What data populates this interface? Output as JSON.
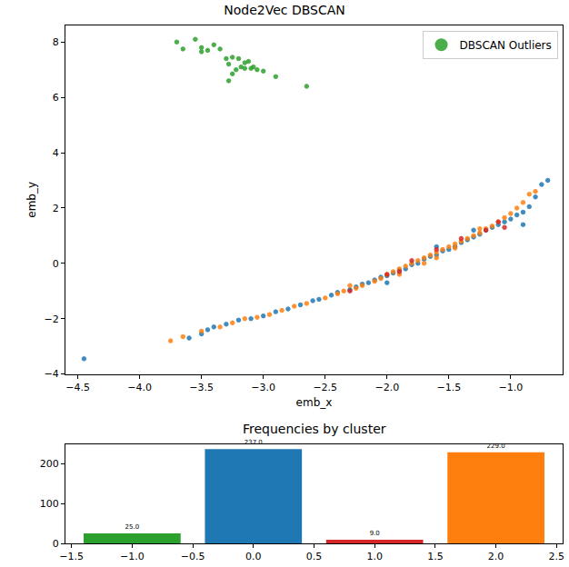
{
  "chart_data": [
    {
      "type": "scatter",
      "title": "Node2Vec DBSCAN",
      "x_label": "emb_x",
      "y_label": "emb_y",
      "legend": "upper right",
      "marker": "o",
      "xlim": [
        -4.6,
        -0.58
      ],
      "xticks": [
        {
          "value": -4.5,
          "label": "−4.5"
        },
        {
          "value": -4.0,
          "label": "−4.0"
        },
        {
          "value": -3.5,
          "label": "−3.5"
        },
        {
          "value": -3.0,
          "label": "−3.0"
        },
        {
          "value": -2.5,
          "label": "−2.5"
        },
        {
          "value": -2.0,
          "label": "−2.0"
        },
        {
          "value": -1.5,
          "label": "−1.5"
        },
        {
          "value": -1.0,
          "label": "−1.0"
        }
      ],
      "ylim": [
        -4,
        8.6
      ],
      "yticks": [
        {
          "value": -4,
          "label": "−4"
        },
        {
          "value": -2,
          "label": "−2"
        },
        0,
        2,
        4,
        6,
        8
      ],
      "series": [
        {
          "color": "#1f77b4",
          "x": [
            -4.45,
            -3.6,
            -3.5,
            -3.45,
            -3.4,
            -3.3,
            -3.2,
            -3.1,
            -3.0,
            -2.9,
            -2.8,
            -2.7,
            -2.6,
            -2.55,
            -2.45,
            -2.4,
            -2.3,
            -2.25,
            -2.2,
            -2.15,
            -2.1,
            -2.05,
            -2.0,
            -1.95,
            -1.9,
            -1.85,
            -1.8,
            -1.75,
            -1.7,
            -1.65,
            -1.6,
            -1.55,
            -1.5,
            -1.45,
            -1.4,
            -1.35,
            -1.3,
            -1.25,
            -1.2,
            -1.15,
            -1.1,
            -1.05,
            -1.0,
            -0.95,
            -0.9,
            -0.85,
            -0.8,
            -0.75,
            -0.7,
            -0.9,
            -1.6,
            -2.0,
            -1.3
          ],
          "values": [
            -3.45,
            -2.7,
            -2.55,
            -2.4,
            -2.3,
            -2.2,
            -2.05,
            -2.0,
            -1.9,
            -1.75,
            -1.65,
            -1.5,
            -1.35,
            -1.3,
            -1.15,
            -1.05,
            -0.95,
            -0.85,
            -0.75,
            -0.7,
            -0.6,
            -0.5,
            -0.45,
            -0.35,
            -0.25,
            -0.2,
            -0.05,
            0.0,
            0.15,
            0.25,
            0.3,
            0.45,
            0.5,
            0.6,
            0.75,
            0.85,
            0.95,
            1.05,
            1.2,
            1.3,
            1.4,
            1.5,
            1.6,
            1.75,
            1.85,
            2.05,
            2.4,
            2.85,
            3.0,
            1.4,
            0.6,
            -0.7,
            1.2
          ]
        },
        {
          "color": "#ff7f0e",
          "x": [
            -3.75,
            -3.65,
            -3.5,
            -3.35,
            -3.25,
            -3.15,
            -3.05,
            -2.95,
            -2.85,
            -2.75,
            -2.65,
            -2.5,
            -2.4,
            -2.35,
            -2.25,
            -2.2,
            -2.1,
            -2.05,
            -2.0,
            -1.95,
            -1.9,
            -1.85,
            -1.8,
            -1.75,
            -1.7,
            -1.65,
            -1.6,
            -1.55,
            -1.5,
            -1.45,
            -1.4,
            -1.35,
            -1.3,
            -1.25,
            -1.2,
            -1.15,
            -1.1,
            -1.05,
            -1.0,
            -0.95,
            -0.9,
            -0.85,
            -0.8,
            -1.9,
            -1.7,
            -1.45,
            -2.3,
            -1.25,
            -1.6
          ],
          "values": [
            -2.8,
            -2.65,
            -2.45,
            -2.3,
            -2.15,
            -2.0,
            -1.95,
            -1.85,
            -1.7,
            -1.55,
            -1.45,
            -1.25,
            -1.1,
            -1.0,
            -0.9,
            -0.8,
            -0.65,
            -0.55,
            -0.4,
            -0.3,
            -0.2,
            -0.1,
            0.0,
            0.1,
            0.2,
            0.3,
            0.4,
            0.5,
            0.6,
            0.7,
            0.8,
            0.9,
            1.0,
            1.1,
            1.25,
            1.35,
            1.5,
            1.65,
            1.8,
            2.0,
            2.2,
            2.5,
            2.6,
            -0.4,
            0.0,
            0.55,
            -0.8,
            1.25,
            0.2
          ]
        },
        {
          "color": "#d62728",
          "x": [
            -2.0,
            -1.8,
            -1.1,
            -1.05,
            -1.9,
            -2.3,
            -1.6,
            -1.4,
            -1.2
          ],
          "values": [
            -0.4,
            0.1,
            1.5,
            1.3,
            -0.3,
            -1.0,
            0.5,
            0.9,
            1.2
          ]
        },
        {
          "name": "DBSCAN Outliers",
          "color": "#2ca02c",
          "x": [
            -3.7,
            -3.65,
            -3.55,
            -3.5,
            -3.45,
            -3.4,
            -3.35,
            -3.3,
            -3.28,
            -3.25,
            -3.22,
            -3.2,
            -3.18,
            -3.15,
            -3.12,
            -3.1,
            -3.08,
            -3.05,
            -3.0,
            -3.28,
            -3.25,
            -2.9,
            -2.65,
            -3.5,
            -3.15
          ],
          "values": [
            8.0,
            7.75,
            8.1,
            7.8,
            7.7,
            7.9,
            7.75,
            7.4,
            7.2,
            7.45,
            7.0,
            7.4,
            7.1,
            7.25,
            7.3,
            7.05,
            7.1,
            7.0,
            6.95,
            6.6,
            6.85,
            6.75,
            6.4,
            7.65,
            7.05
          ]
        }
      ]
    },
    {
      "type": "bar",
      "title": "Frequencies by cluster",
      "data_labels": true,
      "x": [
        -1,
        0,
        1,
        2
      ],
      "values": [
        25,
        237,
        9,
        229
      ],
      "value_labels": [
        "25.0",
        "237.0",
        "9.0",
        "229.0"
      ],
      "colors": [
        "#2ca02c",
        "#1f77b4",
        "#d62728",
        "#ff7f0e"
      ],
      "xlim": [
        -1.55,
        2.55
      ],
      "xticks": [
        {
          "value": -1.5,
          "label": "−1.5"
        },
        {
          "value": -1.0,
          "label": "−1.0"
        },
        {
          "value": -0.5,
          "label": "−0.5"
        },
        {
          "value": 0.0,
          "label": "0.0"
        },
        {
          "value": 0.5,
          "label": "0.5"
        },
        {
          "value": 1.0,
          "label": "1.0"
        },
        {
          "value": 1.5,
          "label": "1.5"
        },
        {
          "value": 2.0,
          "label": "2.0"
        },
        {
          "value": 2.5,
          "label": "2.5"
        }
      ],
      "ylim": [
        0,
        250
      ],
      "yticks": [
        0,
        100,
        200
      ]
    }
  ]
}
